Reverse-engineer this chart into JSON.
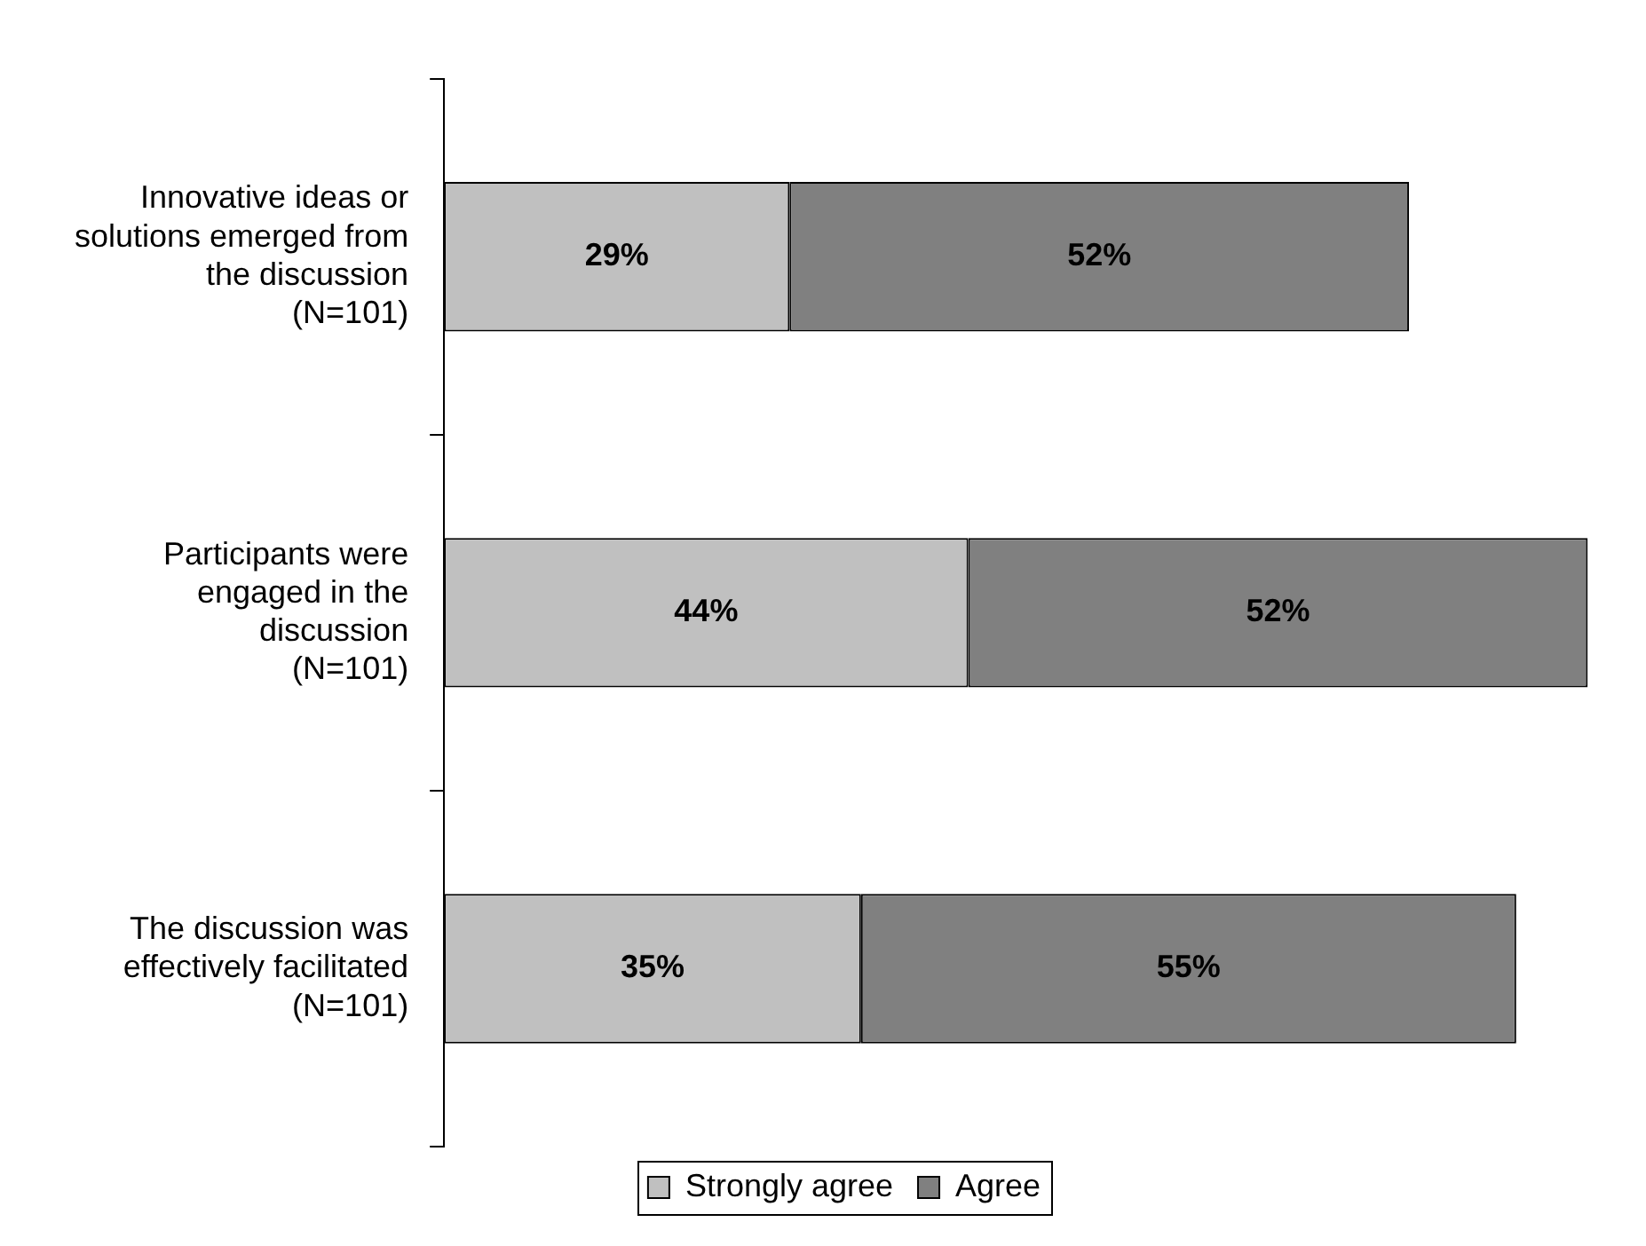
{
  "chart_data": {
    "type": "bar",
    "orientation": "horizontal",
    "stacked": true,
    "categories": [
      "Innovative ideas or solutions emerged from the discussion (N=101)",
      "Participants were engaged in the discussion (N=101)",
      "The discussion was effectively facilitated (N=101)"
    ],
    "series": [
      {
        "name": "Strongly agree",
        "color": "#c0c0c0",
        "values": [
          29,
          44,
          35
        ],
        "value_labels": [
          "29%",
          "44%",
          "35%"
        ]
      },
      {
        "name": "Agree",
        "color": "#808080",
        "values": [
          52,
          52,
          55
        ],
        "value_labels": [
          "52%",
          "52%",
          "55%"
        ]
      }
    ],
    "tick_labels": "y",
    "legend": "bottom",
    "grid": false
  }
}
